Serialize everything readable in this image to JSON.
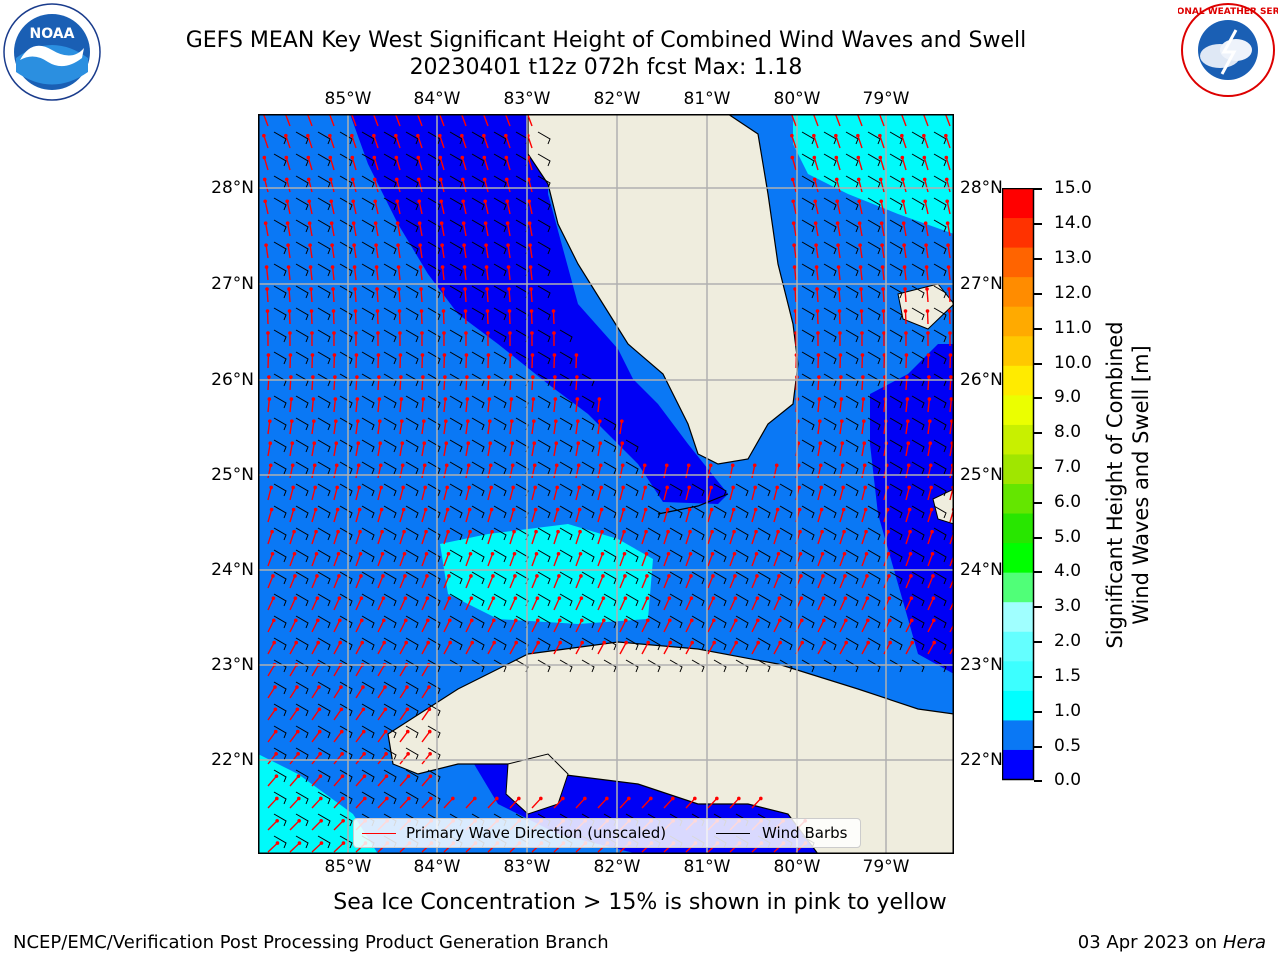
{
  "header": {
    "title_line1": "GEFS MEAN Key West Significant Height of Combined Wind Waves and Swell",
    "title_line2": "20230401 t12z 072h fcst   Max: 1.18"
  },
  "logos": {
    "left": "NOAA",
    "right": "NATIONAL WEATHER SERVICE"
  },
  "map": {
    "lon_labels": [
      "85°W",
      "84°W",
      "83°W",
      "82°W",
      "81°W",
      "80°W",
      "79°W"
    ],
    "lat_labels": [
      "28°N",
      "27°N",
      "26°N",
      "25°N",
      "24°N",
      "23°N",
      "22°N"
    ],
    "colors": {
      "land": "#efedde",
      "sea_0": "#0000f5",
      "sea_05": "#0a78f5",
      "sea_10": "#00fafa",
      "wave_arrow": "#ff0000",
      "barb": "#000000"
    }
  },
  "legend": {
    "primary_wave_label": "Primary Wave Direction (unscaled)",
    "wind_barbs_label": "Wind Barbs"
  },
  "colorbar": {
    "title_line1": "Significant Height of Combined",
    "title_line2": "Wind Waves and Swell [m]",
    "ticks": [
      "15.0",
      "14.0",
      "13.0",
      "12.0",
      "11.0",
      "10.0",
      "9.0",
      "8.0",
      "7.0",
      "6.0",
      "5.0",
      "4.0",
      "3.0",
      "2.0",
      "1.5",
      "1.0",
      "0.5",
      "0.0"
    ],
    "colors": [
      "#0000ff",
      "#0a78f5",
      "#00ffff",
      "#3cffff",
      "#64ffff",
      "#a0ffff",
      "#50ff78",
      "#00ff00",
      "#28e600",
      "#64e600",
      "#a0e600",
      "#c8f000",
      "#ebff00",
      "#ffeb00",
      "#ffc800",
      "#ffaa00",
      "#ff8c00",
      "#ff6400",
      "#ff3200",
      "#ff0000"
    ]
  },
  "caption": "Sea Ice Concentration > 15% is shown in pink to yellow",
  "footer": {
    "left": "NCEP/EMC/Verification Post Processing Product Generation Branch",
    "right_date": "03 Apr 2023 on",
    "right_host": "Hera"
  }
}
